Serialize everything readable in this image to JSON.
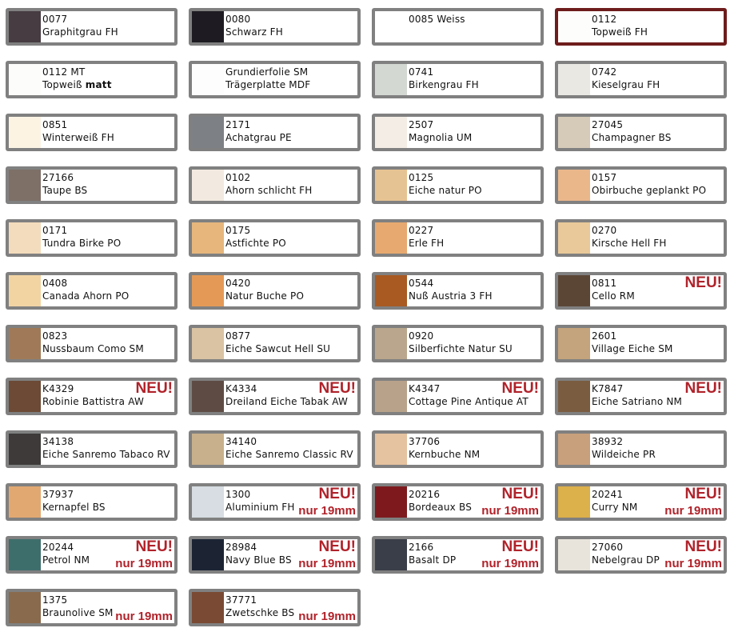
{
  "badges": {
    "new": "NEU!",
    "only19": "nur 19mm"
  },
  "items": [
    {
      "code": "0077",
      "name": "Graphitgrau FH",
      "color": "#463c42"
    },
    {
      "code": "0080",
      "name": "Schwarz FH",
      "color": "#1e1c22"
    },
    {
      "code": "0085 Weiss",
      "name": "",
      "color": "#ffffff"
    },
    {
      "code": "0112",
      "name": "Topweiß FH",
      "color": "#fdfdfb",
      "selected": true
    },
    {
      "code": "0112 MT",
      "name": "Topweiß ",
      "name_bold": "matt",
      "color": "#fcfcfa"
    },
    {
      "code": "Grundierfolie SM",
      "name": "Trägerplatte MDF",
      "color": "#fdfdfd"
    },
    {
      "code": "0741",
      "name": "Birkengrau FH",
      "color": "#d3d8d2"
    },
    {
      "code": "0742",
      "name": "Kieselgrau FH",
      "color": "#e9e8e3"
    },
    {
      "code": "0851",
      "name": "Winterweiß FH",
      "color": "#fcf3e3"
    },
    {
      "code": "2171",
      "name": "Achatgrau PE",
      "color": "#7d8084"
    },
    {
      "code": "2507",
      "name": "Magnolia UM",
      "color": "#f3ede6"
    },
    {
      "code": "27045",
      "name": "Champagner BS",
      "color": "#d6cbb8"
    },
    {
      "code": "27166",
      "name": "Taupe BS",
      "color": "#7e7067"
    },
    {
      "code": "0102",
      "name": "Ahorn schlicht FH",
      "color": "#f2e9e0"
    },
    {
      "code": "0125",
      "name": "Eiche natur PO",
      "color": "#e6c393"
    },
    {
      "code": "0157",
      "name": "Obirbuche geplankt PO",
      "color": "#eab78b"
    },
    {
      "code": "0171",
      "name": "Tundra Birke PO",
      "color": "#f3dcbd"
    },
    {
      "code": "0175",
      "name": "Astfichte PO",
      "color": "#e6b67c"
    },
    {
      "code": "0227",
      "name": "Erle FH",
      "color": "#e7a970"
    },
    {
      "code": "0270",
      "name": "Kirsche Hell FH",
      "color": "#e9c99a"
    },
    {
      "code": "0408",
      "name": "Canada Ahorn PO",
      "color": "#f2d4a3"
    },
    {
      "code": "0420",
      "name": "Natur Buche PO",
      "color": "#e49a56"
    },
    {
      "code": "0544",
      "name": "Nuß Austria 3 FH",
      "color": "#a85a22"
    },
    {
      "code": "0811",
      "name": "Cello RM",
      "color": "#5b4636",
      "neu": true
    },
    {
      "code": "0823",
      "name": "Nussbaum Como SM",
      "color": "#a07a58"
    },
    {
      "code": "0877",
      "name": "Eiche Sawcut Hell SU",
      "color": "#d9c3a3"
    },
    {
      "code": "0920",
      "name": "Silberfichte Natur SU",
      "color": "#b9a68c"
    },
    {
      "code": "2601",
      "name": "Village Eiche SM",
      "color": "#c4a47c"
    },
    {
      "code": "K4329",
      "name": "Robinie Battistra AW",
      "color": "#6c4a36",
      "neu": true
    },
    {
      "code": "K4334",
      "name": "Dreiland Eiche Tabak AW",
      "color": "#5e4c44",
      "neu": true
    },
    {
      "code": "K4347",
      "name": "Cottage Pine Antique AT",
      "color": "#b8a28a",
      "neu": true
    },
    {
      "code": "K7847",
      "name": "Eiche Satriano NM",
      "color": "#7a5c40",
      "neu": true
    },
    {
      "code": "34138",
      "name": "Eiche Sanremo Tabaco RV",
      "color": "#3e3a3a"
    },
    {
      "code": "34140",
      "name": "Eiche Sanremo Classic RV",
      "color": "#c8b08c"
    },
    {
      "code": "37706",
      "name": "Kernbuche NM",
      "color": "#e5c2a0"
    },
    {
      "code": "38932",
      "name": "Wildeiche PR",
      "color": "#c8a07c"
    },
    {
      "code": "37937",
      "name": "Kernapfel BS",
      "color": "#e2a872"
    },
    {
      "code": "1300",
      "name": "Aluminium FH",
      "color": "#d7dde2",
      "neu": true,
      "nur": true
    },
    {
      "code": "20216",
      "name": "Bordeaux BS",
      "color": "#7e1a1e",
      "neu": true,
      "nur": true
    },
    {
      "code": "20241",
      "name": "Curry NM",
      "color": "#dcb04a",
      "neu": true,
      "nur": true
    },
    {
      "code": "20244",
      "name": "Petrol NM",
      "color": "#3e6e6c",
      "neu": true,
      "nur": true
    },
    {
      "code": "28984",
      "name": "Navy Blue BS",
      "color": "#1c2434",
      "neu": true,
      "nur": true
    },
    {
      "code": "2166",
      "name": "Basalt DP",
      "color": "#3a3e48",
      "neu": true,
      "nur": true
    },
    {
      "code": "27060",
      "name": "Nebelgrau DP",
      "color": "#e8e4dc",
      "neu": true,
      "nur": true
    },
    {
      "code": "1375",
      "name": "Braunolive SM",
      "color": "#8a6a4c",
      "nur": true
    },
    {
      "code": "37771",
      "name": "Zwetschke BS",
      "color": "#7a4a34",
      "nur": true
    }
  ]
}
